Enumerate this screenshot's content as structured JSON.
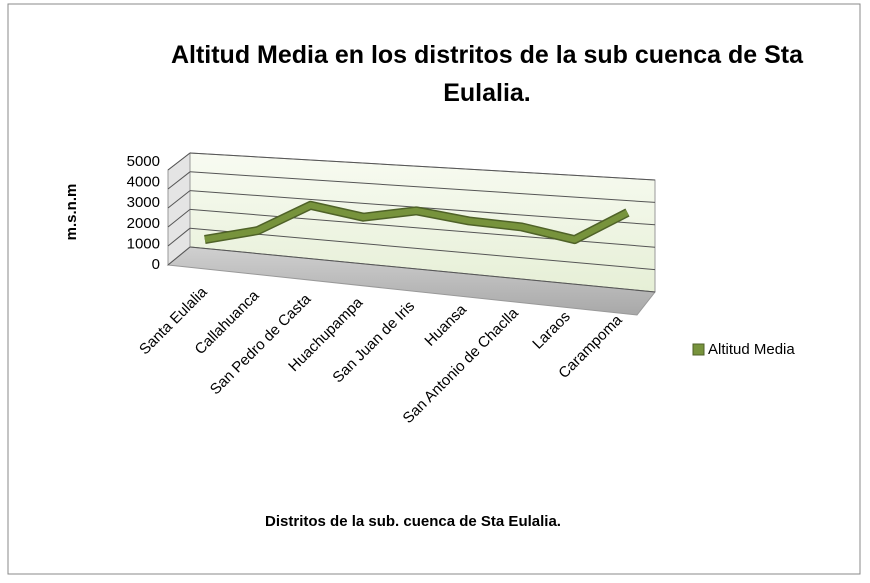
{
  "chart_data": {
    "type": "line3d",
    "title": "Altitud Media en los distritos de la sub cuenca de Sta Eulalia.",
    "x_label": "Distritos de la sub. cuenca de Sta Eulalia.",
    "y_label": "m.s.n.m",
    "categories": [
      "Santa Eulalia",
      "Callahuanca",
      "San Pedro de Casta",
      "Huachupampa",
      "San Juan de Iris",
      "Huansa",
      "San Antonio de Chaclla",
      "Laraos",
      "Carampoma"
    ],
    "series": [
      {
        "name": "Altitud Media",
        "color": "#77933c",
        "values": [
          1000,
          1700,
          3200,
          2800,
          3300,
          3000,
          2900,
          2500,
          3900
        ]
      }
    ],
    "ylim": [
      0,
      5000
    ],
    "yticks": [
      0,
      1000,
      2000,
      3000,
      4000,
      5000
    ],
    "grid": true,
    "legend": "right"
  }
}
